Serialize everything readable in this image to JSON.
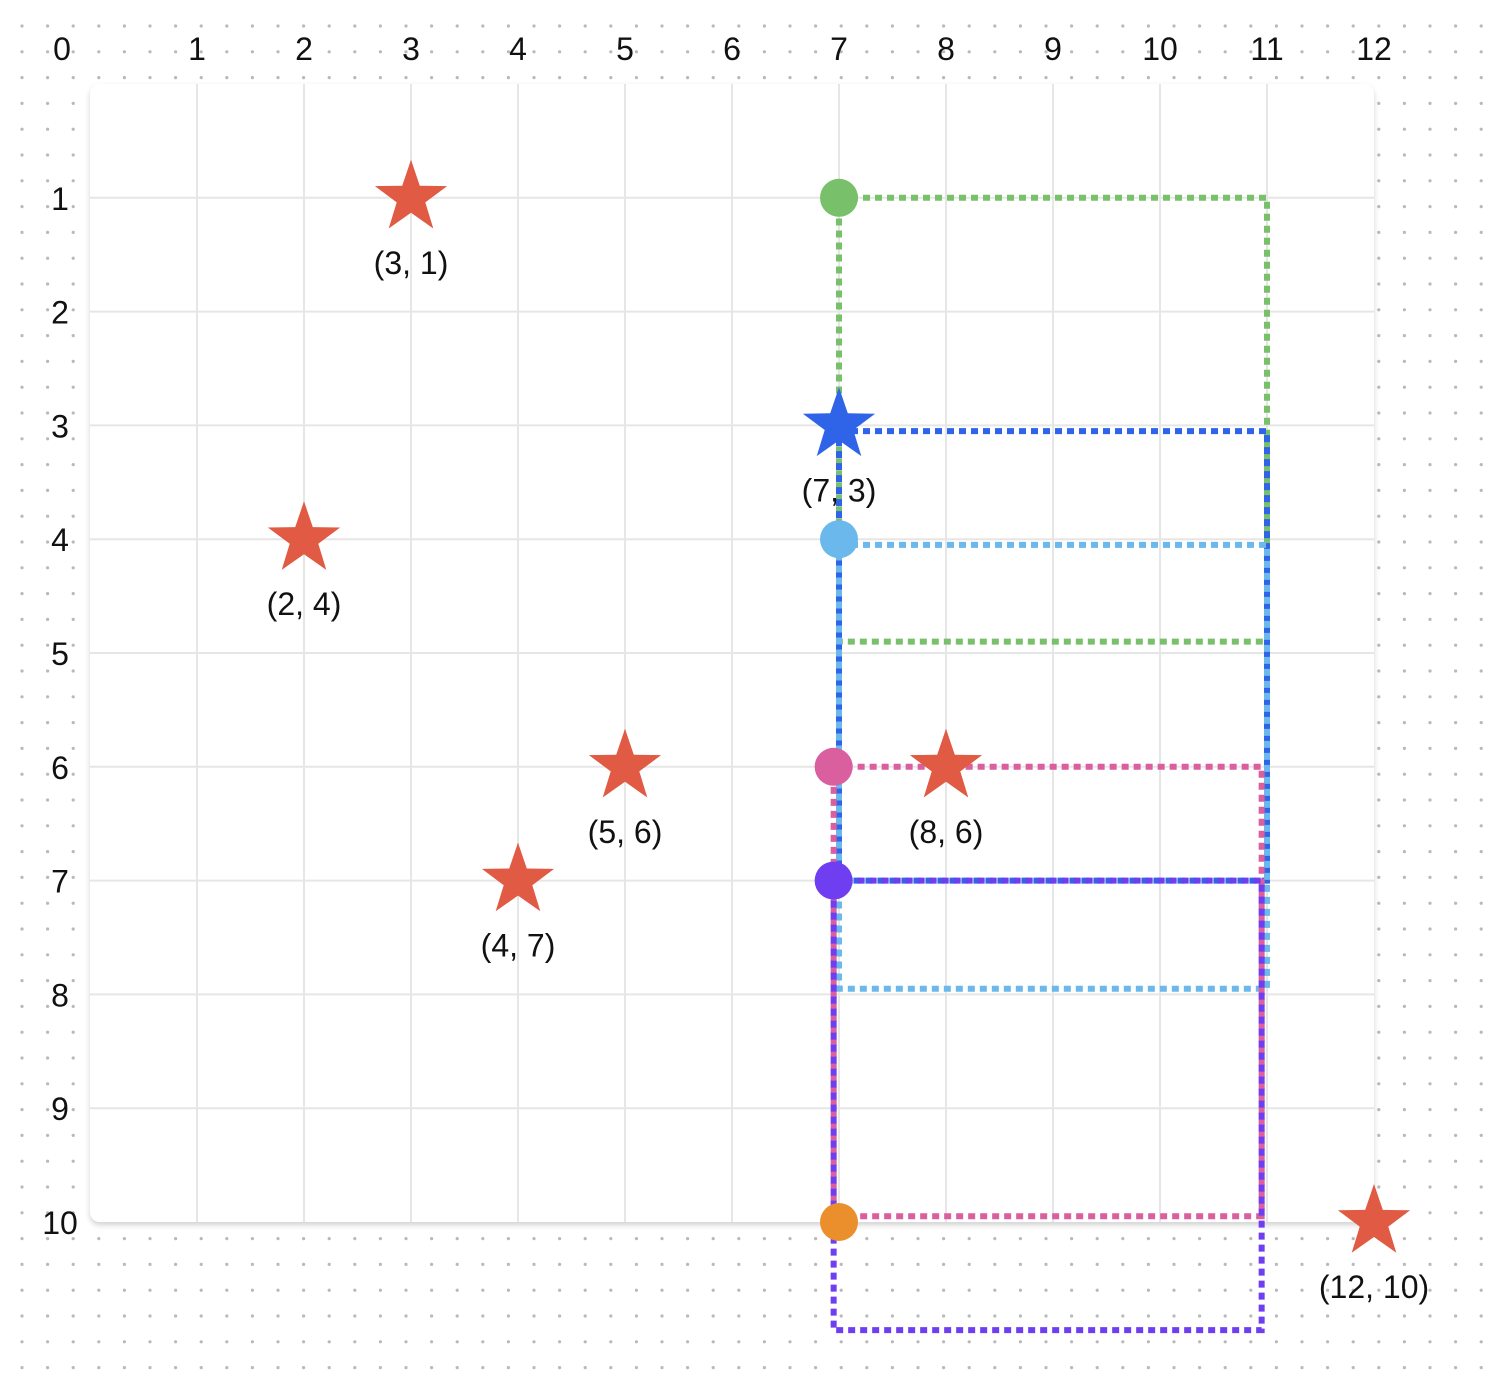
{
  "canvas": {
    "background": "#ffffff",
    "dot_color": "#b9b9b9"
  },
  "axes": {
    "x_ticks": [
      0,
      1,
      2,
      3,
      4,
      5,
      6,
      7,
      8,
      9,
      10,
      11,
      12
    ],
    "y_ticks": [
      1,
      2,
      3,
      4,
      5,
      6,
      7,
      8,
      9,
      10
    ],
    "x_range": [
      0,
      12
    ],
    "y_range": [
      0,
      10
    ],
    "grid_color": "#e6e6e6"
  },
  "stars": [
    {
      "x": 3,
      "y": 1,
      "label": "(3, 1)",
      "color": "#e05a44"
    },
    {
      "x": 2,
      "y": 4,
      "label": "(2, 4)",
      "color": "#e05a44"
    },
    {
      "x": 5,
      "y": 6,
      "label": "(5, 6)",
      "color": "#e05a44"
    },
    {
      "x": 8,
      "y": 6,
      "label": "(8, 6)",
      "color": "#e05a44"
    },
    {
      "x": 4,
      "y": 7,
      "label": "(4, 7)",
      "color": "#e05a44"
    },
    {
      "x": 12,
      "y": 10,
      "label": "(12, 10)",
      "color": "#e05a44"
    },
    {
      "x": 7,
      "y": 3,
      "label": "(7, 3)",
      "color": "#2f63e8"
    }
  ],
  "circles": [
    {
      "name": "green-circle",
      "x": 7,
      "y": 1,
      "color": "#78c06a"
    },
    {
      "name": "light-blue-circle",
      "x": 7,
      "y": 4,
      "color": "#6bb8ec"
    },
    {
      "name": "pink-circle",
      "x": 6.95,
      "y": 6,
      "color": "#d95f9f"
    },
    {
      "name": "purple-circle",
      "x": 6.95,
      "y": 7,
      "color": "#6f3ef0"
    },
    {
      "name": "orange-circle",
      "x": 7,
      "y": 10,
      "color": "#ea8f2b"
    }
  ],
  "rectangles": [
    {
      "name": "green-rectangle",
      "x1": 7,
      "y1": 1,
      "x2": 11,
      "y2": 4.9,
      "color": "#78c06a"
    },
    {
      "name": "blue-rectangle",
      "x1": 7,
      "y1": 3.05,
      "x2": 11,
      "y2": 7,
      "color": "#2f63e8"
    },
    {
      "name": "light-blue-rectangle",
      "x1": 7,
      "y1": 4.05,
      "x2": 11,
      "y2": 7.95,
      "color": "#6bb8ec"
    },
    {
      "name": "pink-rectangle",
      "x1": 6.95,
      "y1": 6,
      "x2": 10.95,
      "y2": 9.95,
      "color": "#d95f9f"
    },
    {
      "name": "purple-rectangle",
      "x1": 6.95,
      "y1": 7,
      "x2": 10.95,
      "y2": 10.95,
      "color": "#6f3ef0"
    }
  ]
}
